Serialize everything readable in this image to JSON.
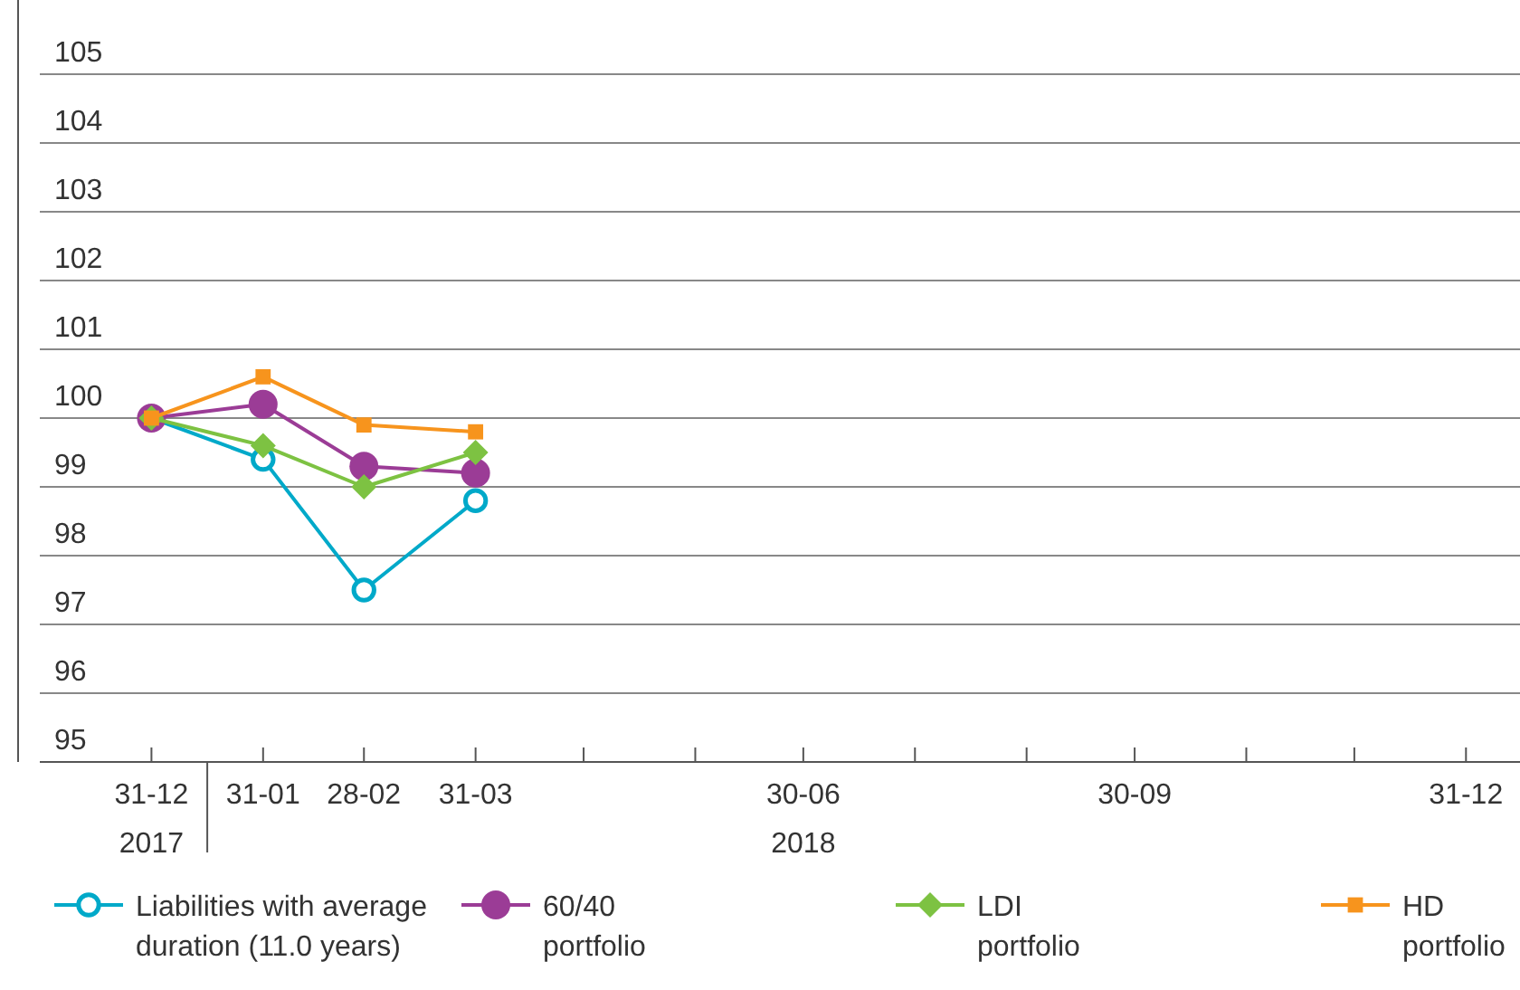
{
  "chart_data": {
    "type": "line",
    "x": [
      "2017-12-31",
      "2018-01-31",
      "2018-02-28",
      "2018-03-31"
    ],
    "series": [
      {
        "name": "Liabilities with average duration (11.0 years)",
        "color": "#00a9c9",
        "marker": "circle-open",
        "values": [
          100,
          99.4,
          97.5,
          98.8
        ]
      },
      {
        "name": "60/40 portfolio",
        "color": "#9b3c96",
        "marker": "circle",
        "values": [
          100,
          100.2,
          99.3,
          99.2
        ]
      },
      {
        "name": "LDI portfolio",
        "color": "#7dc242",
        "marker": "diamond",
        "values": [
          100,
          99.6,
          99.0,
          99.5
        ]
      },
      {
        "name": "HD portfolio",
        "color": "#f7941d",
        "marker": "square",
        "values": [
          100,
          100.6,
          99.9,
          99.8
        ]
      }
    ],
    "xlim": [
      "2017-11-30",
      "2019-01-15"
    ],
    "xticks": [
      {
        "value": "2017-12-31",
        "label": "31-12\n2017"
      },
      {
        "value": "2018-01-31",
        "label": "31-01"
      },
      {
        "value": "2018-02-28",
        "label": "28-02"
      },
      {
        "value": "2018-03-31",
        "label": "31-03"
      },
      {
        "value": "2018-04-30",
        "label": null
      },
      {
        "value": "2018-05-31",
        "label": null
      },
      {
        "value": "2018-06-30",
        "label": "30-06\n2018"
      },
      {
        "value": "2018-07-31",
        "label": null
      },
      {
        "value": "2018-08-31",
        "label": null
      },
      {
        "value": "2018-09-30",
        "label": "30-09"
      },
      {
        "value": "2018-10-31",
        "label": null
      },
      {
        "value": "2018-11-30",
        "label": null
      },
      {
        "value": "2018-12-31",
        "label": "31-12"
      }
    ],
    "ylim": [
      95,
      105
    ],
    "yticks": [
      95,
      96,
      97,
      98,
      99,
      100,
      101,
      102,
      103,
      104,
      105
    ],
    "grid": "y",
    "legend": "bottom"
  }
}
